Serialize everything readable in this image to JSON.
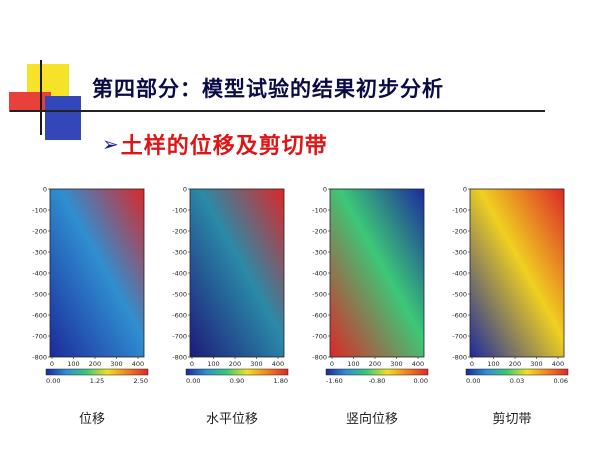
{
  "slide": {
    "title": "第四部分：模型试验的结果初步分析",
    "subtitle": "土样的位移及剪切带"
  },
  "panels": [
    {
      "caption": "位移",
      "y_ticks": [
        "0",
        "-100",
        "-200",
        "-300",
        "-400",
        "-500",
        "-600",
        "-700",
        "-800"
      ],
      "x_ticks": [
        "0",
        "100",
        "200",
        "300",
        "400"
      ],
      "colorbar_labels": [
        "0.00",
        "1.25",
        "2.50"
      ],
      "colors": {
        "low": "#1c2a9c",
        "mid": "#2f8fd0",
        "high": "#dc2828"
      }
    },
    {
      "caption": "水平位移",
      "y_ticks": [
        "0",
        "-100",
        "-200",
        "-300",
        "-400",
        "-500",
        "-600",
        "-700",
        "-800"
      ],
      "x_ticks": [
        "0",
        "100",
        "200",
        "300",
        "400"
      ],
      "colorbar_labels": [
        "0.00",
        "0.90",
        "1.80"
      ],
      "colors": {
        "low": "#1e1a7a",
        "mid": "#2a8aa8",
        "high": "#dc2828"
      }
    },
    {
      "caption": "竖向位移",
      "y_ticks": [
        "0",
        "-100",
        "-200",
        "-300",
        "-400",
        "-500",
        "-600",
        "-700",
        "-800"
      ],
      "x_ticks": [
        "0",
        "100",
        "200",
        "300",
        "400"
      ],
      "colorbar_labels": [
        "-1.60",
        "-0.80",
        "0.00"
      ],
      "colors": {
        "low": "#dc2828",
        "mid": "#3cc878",
        "high": "#1c2a9c"
      }
    },
    {
      "caption": "剪切带",
      "y_ticks": [
        "0",
        "-100",
        "-200",
        "-300",
        "-400",
        "-500",
        "-600",
        "-700",
        "-800"
      ],
      "x_ticks": [
        "0",
        "100",
        "200",
        "300",
        "400"
      ],
      "colorbar_labels": [
        "0.00",
        "0.03",
        "0.06"
      ],
      "colors": {
        "low": "#1c2a9c",
        "mid": "#f0d020",
        "high": "#dc2828"
      }
    }
  ]
}
